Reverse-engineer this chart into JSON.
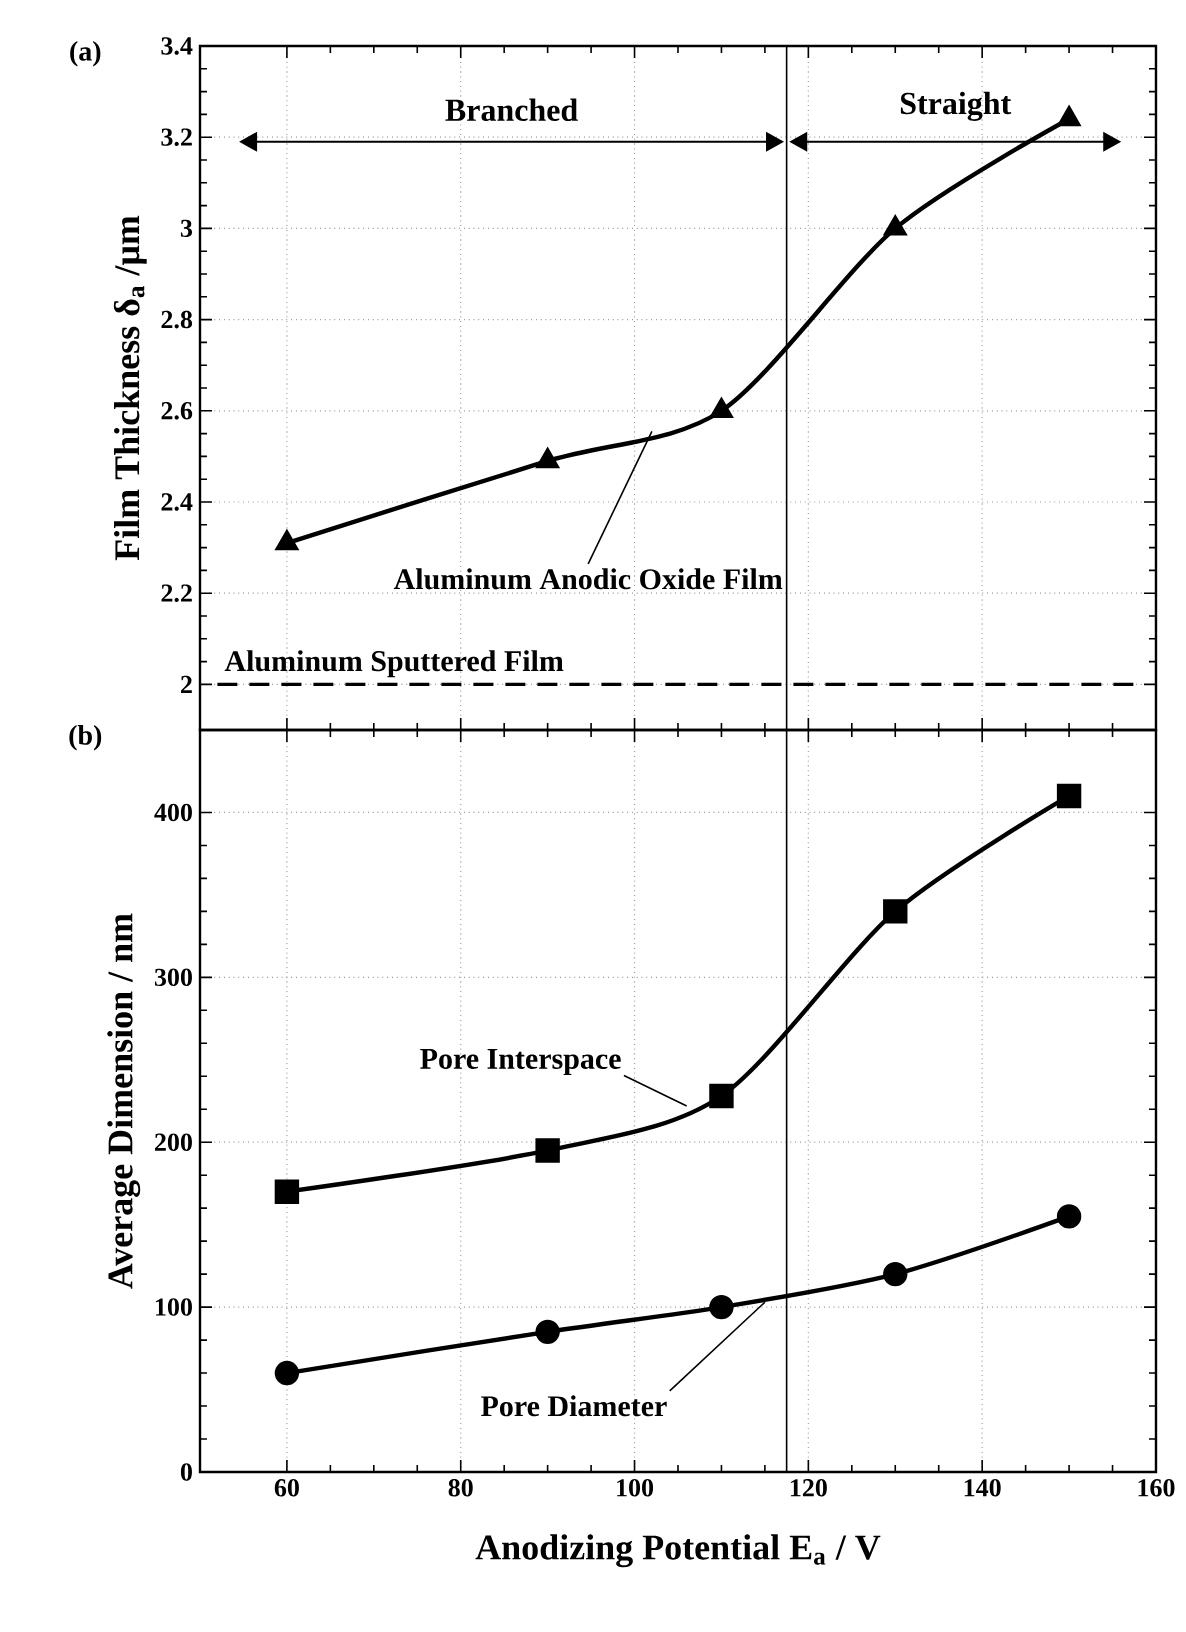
{
  "chart_data": [
    {
      "type": "line",
      "title": "(a)",
      "ylabel": "Film Thickness δ$_{a}$ /μm",
      "x": [
        60,
        90,
        110,
        130,
        150
      ],
      "series": [
        {
          "name": "Aluminum Anodic Oxide Film",
          "color": "#000000",
          "marker": "triangle",
          "values": [
            2.31,
            2.49,
            2.6,
            3.0,
            3.24
          ]
        }
      ],
      "xlim": [
        50,
        160
      ],
      "xticks": [
        60,
        80,
        100,
        120,
        140,
        160
      ],
      "ylim": [
        1.9,
        3.4
      ],
      "yticks": [
        2,
        2.2,
        2.4,
        2.6,
        2.8,
        3,
        3.2,
        3.4
      ],
      "tick_labels": "y",
      "grid": true,
      "ref_lines": [
        {
          "axis": "y",
          "value": 2,
          "label": "Aluminum Sputtered Film",
          "line_style": "dashed"
        },
        {
          "axis": "x",
          "value": 117.5
        }
      ],
      "annotations": [
        "Branched",
        "Straight"
      ]
    },
    {
      "type": "line",
      "title": "(b)",
      "xlabel": "Anodizing Potential E$_{a}$ / V",
      "ylabel": "Average Dimension / nm",
      "x": [
        60,
        90,
        110,
        130,
        150
      ],
      "series": [
        {
          "name": "Pore Interspace",
          "color": "#000000",
          "marker": "square",
          "values": [
            170,
            195,
            228,
            340,
            410
          ]
        },
        {
          "name": "Pore Diameter",
          "color": "#000000",
          "marker": "circle",
          "values": [
            60,
            85,
            100,
            120,
            155
          ]
        }
      ],
      "xlim": [
        50,
        160
      ],
      "xticks": [
        60,
        80,
        100,
        120,
        140,
        160
      ],
      "ylim": [
        0,
        450
      ],
      "yticks": [
        0,
        100,
        200,
        300,
        400
      ],
      "grid": true,
      "ref_lines": [
        {
          "axis": "x",
          "value": 117.5
        }
      ]
    }
  ]
}
